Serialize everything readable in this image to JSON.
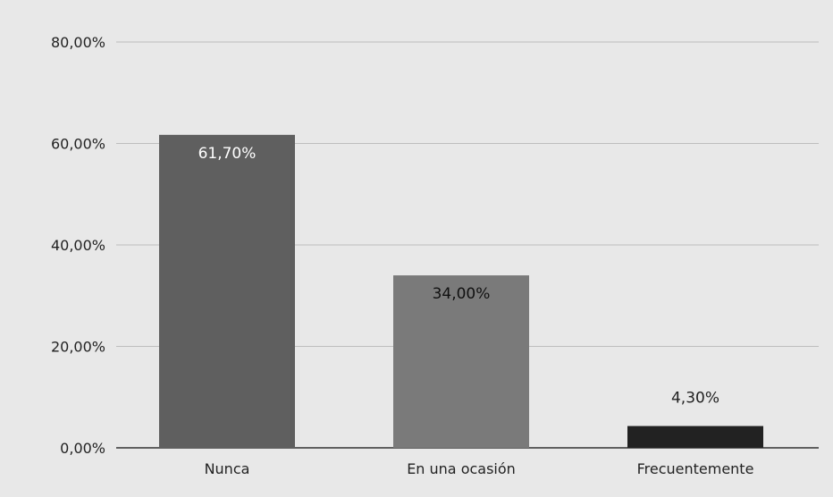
{
  "chart_data": {
    "type": "bar",
    "title": "",
    "xlabel": "",
    "ylabel": "",
    "categories": [
      "Nunca",
      "En una ocasión",
      "Frecuentemente"
    ],
    "values": [
      61.7,
      34.0,
      4.3
    ],
    "data_labels": [
      "61,70%",
      "34,00%",
      "4,30%"
    ],
    "ylim": [
      0,
      80
    ],
    "yticks": [
      0,
      20,
      40,
      60,
      80
    ],
    "ytick_labels": [
      "0,00%",
      "20,00%",
      "40,00%",
      "60,00%",
      "80,00%"
    ],
    "grid": true,
    "legend": "none",
    "colors": {
      "background": "#e8e8e8",
      "grid": "#bdbdbd",
      "bars": [
        "#5f5f5f",
        "#7a7a7a",
        "#222222"
      ],
      "label_inside_colors": [
        "#ffffff",
        "#111111"
      ],
      "label_outside_color": "#222222"
    }
  }
}
